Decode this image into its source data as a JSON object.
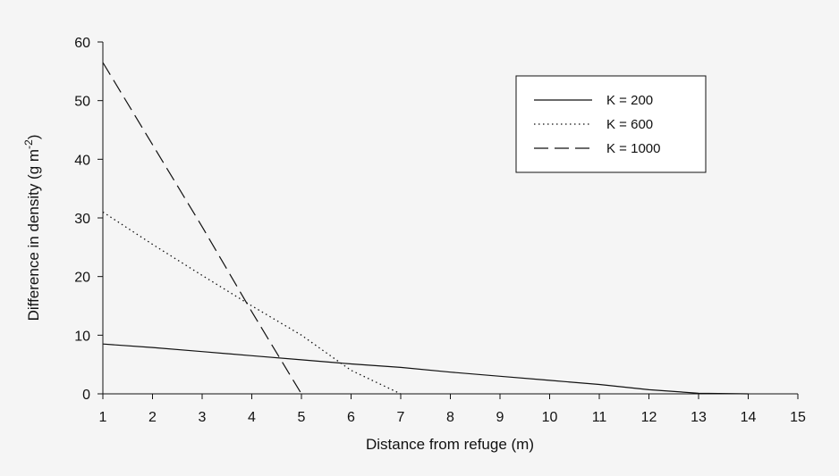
{
  "chart_data": {
    "type": "line",
    "xlabel": "Distance from refuge (m)",
    "ylabel_main": "Difference in density (g m",
    "ylabel_sup": "-2",
    "ylabel_close": ")",
    "xlim": [
      1,
      15
    ],
    "ylim": [
      0,
      60
    ],
    "xticks": [
      1,
      2,
      3,
      4,
      5,
      6,
      7,
      8,
      9,
      10,
      11,
      12,
      13,
      14,
      15
    ],
    "yticks": [
      0,
      10,
      20,
      30,
      40,
      50,
      60
    ],
    "grid": false,
    "legend_position": "top-right",
    "series": [
      {
        "name": "K = 200",
        "style": "solid",
        "x": [
          1,
          2,
          3,
          4,
          5,
          6,
          7,
          8,
          9,
          10,
          11,
          12,
          13,
          14
        ],
        "y": [
          8.5,
          7.9,
          7.2,
          6.5,
          5.8,
          5.1,
          4.5,
          3.7,
          3.0,
          2.3,
          1.6,
          0.7,
          0.1,
          0
        ]
      },
      {
        "name": "K = 600",
        "style": "dotted",
        "x": [
          1,
          2,
          3,
          4,
          5,
          6,
          7
        ],
        "y": [
          31,
          25.5,
          20.2,
          15.0,
          10.0,
          4.0,
          0
        ]
      },
      {
        "name": "K = 1000",
        "style": "dashed",
        "x": [
          1,
          2,
          3,
          4,
          5
        ],
        "y": [
          56.5,
          42.5,
          28.5,
          14.0,
          0
        ]
      }
    ]
  }
}
